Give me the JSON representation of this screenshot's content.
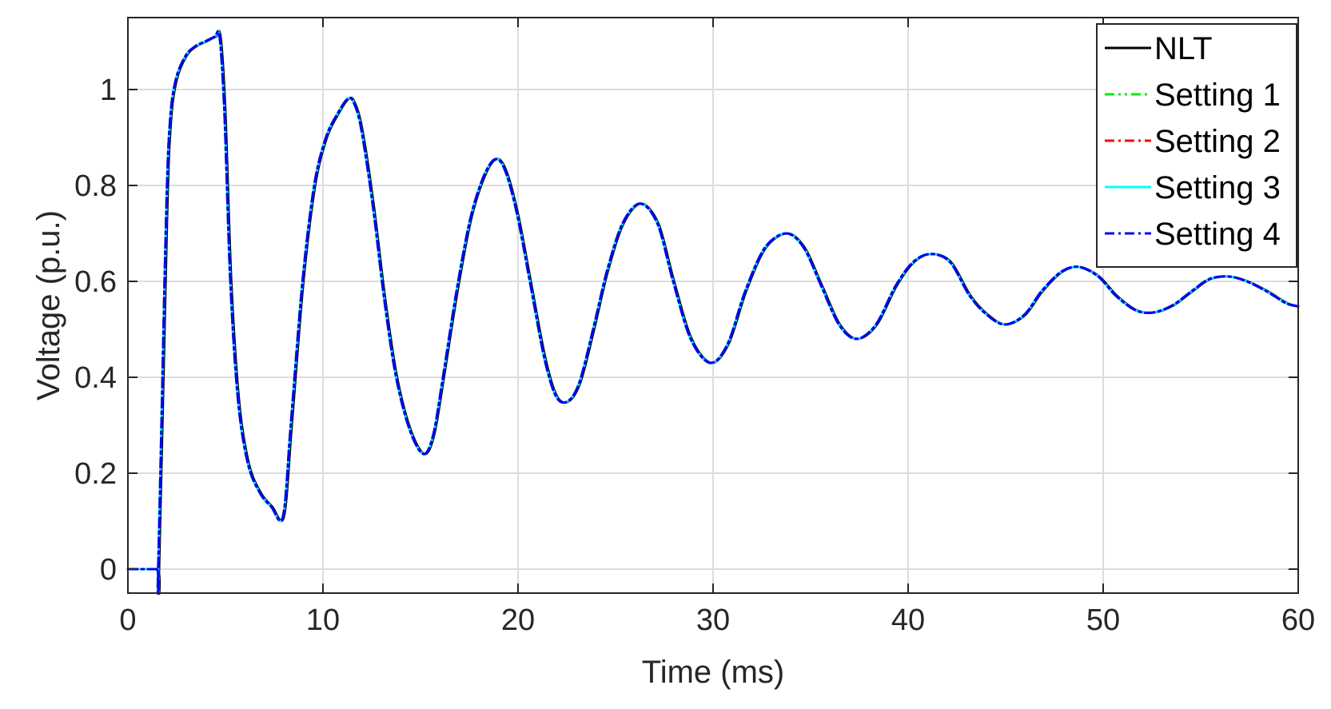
{
  "chart_data": {
    "type": "line",
    "title": "",
    "xlabel": "Time (ms)",
    "ylabel": "Voltage (p.u.)",
    "xlim": [
      0,
      60
    ],
    "ylim": [
      -0.05,
      1.15
    ],
    "xticks": [
      0,
      10,
      20,
      30,
      40,
      50,
      60
    ],
    "yticks": [
      0,
      0.2,
      0.4,
      0.6,
      0.8,
      1
    ],
    "xtick_labels": [
      "0",
      "10",
      "20",
      "30",
      "40",
      "50",
      "60"
    ],
    "ytick_labels": [
      "0",
      "0.2",
      "0.4",
      "0.6",
      "0.8",
      "1"
    ],
    "grid": true,
    "legend_position": "top-right",
    "x": [
      0,
      1.5,
      1.6,
      2.0,
      2.2,
      2.5,
      3.0,
      3.5,
      4.0,
      4.5,
      4.75,
      5.0,
      5.3,
      5.7,
      6.2,
      6.8,
      7.4,
      8.0,
      8.4,
      9.0,
      9.6,
      10.2,
      10.8,
      11.3,
      11.6,
      12.0,
      12.6,
      13.2,
      13.8,
      14.5,
      15.2,
      15.7,
      16.2,
      16.9,
      17.6,
      18.3,
      18.9,
      19.4,
      20.0,
      20.7,
      21.4,
      22.0,
      22.6,
      23.2,
      23.9,
      24.6,
      25.4,
      26.3,
      27.2,
      28.0,
      28.9,
      29.9,
      30.8,
      31.7,
      32.7,
      33.8,
      34.7,
      35.6,
      36.5,
      37.4,
      38.4,
      39.4,
      40.3,
      41.2,
      42.2,
      43.2,
      44.1,
      45.0,
      46.0,
      46.9,
      47.9,
      48.8,
      49.8,
      50.7,
      51.7,
      52.6,
      53.6,
      54.6,
      55.5,
      56.5,
      57.4,
      58.4,
      59.4,
      60.0
    ],
    "series": [
      {
        "name": "NLT",
        "color": "#000000",
        "dash": "solid",
        "width": 3,
        "values": [
          0,
          0,
          0,
          0.72,
          0.93,
          1.02,
          1.07,
          1.09,
          1.1,
          1.11,
          1.11,
          0.95,
          0.6,
          0.35,
          0.22,
          0.16,
          0.13,
          0.11,
          0.3,
          0.6,
          0.8,
          0.9,
          0.95,
          0.98,
          0.975,
          0.92,
          0.76,
          0.56,
          0.4,
          0.29,
          0.24,
          0.28,
          0.4,
          0.58,
          0.73,
          0.82,
          0.855,
          0.83,
          0.74,
          0.59,
          0.44,
          0.36,
          0.35,
          0.39,
          0.5,
          0.62,
          0.72,
          0.762,
          0.72,
          0.6,
          0.48,
          0.43,
          0.47,
          0.58,
          0.67,
          0.7,
          0.67,
          0.59,
          0.51,
          0.48,
          0.51,
          0.59,
          0.64,
          0.657,
          0.64,
          0.57,
          0.53,
          0.51,
          0.53,
          0.58,
          0.62,
          0.63,
          0.61,
          0.57,
          0.54,
          0.535,
          0.55,
          0.58,
          0.605,
          0.61,
          0.6,
          0.58,
          0.555,
          0.548
        ]
      },
      {
        "name": "Setting 1",
        "color": "#00ee00",
        "dash": "12 5 3 5 3 5",
        "width": 3,
        "shift": -0.05,
        "values": [
          0,
          0,
          0,
          0.72,
          0.93,
          1.02,
          1.07,
          1.09,
          1.1,
          1.11,
          1.11,
          0.95,
          0.6,
          0.35,
          0.22,
          0.16,
          0.13,
          0.11,
          0.3,
          0.6,
          0.8,
          0.9,
          0.95,
          0.98,
          0.975,
          0.92,
          0.76,
          0.56,
          0.4,
          0.29,
          0.24,
          0.28,
          0.4,
          0.58,
          0.73,
          0.82,
          0.855,
          0.83,
          0.74,
          0.59,
          0.44,
          0.36,
          0.35,
          0.39,
          0.5,
          0.62,
          0.72,
          0.762,
          0.72,
          0.6,
          0.48,
          0.43,
          0.47,
          0.58,
          0.67,
          0.7,
          0.67,
          0.59,
          0.51,
          0.48,
          0.51,
          0.59,
          0.64,
          0.657,
          0.64,
          0.57,
          0.53,
          0.51,
          0.53,
          0.58,
          0.62,
          0.63,
          0.61,
          0.57,
          0.54,
          0.535,
          0.55,
          0.58,
          0.605,
          0.61,
          0.6,
          0.58,
          0.555,
          0.548
        ]
      },
      {
        "name": "Setting 2",
        "color": "#ff0000",
        "dash": "12 5 3 5",
        "width": 3,
        "shift": -0.05,
        "values": [
          0,
          0,
          0,
          0.72,
          0.93,
          1.02,
          1.07,
          1.09,
          1.1,
          1.11,
          1.11,
          0.95,
          0.6,
          0.35,
          0.22,
          0.16,
          0.13,
          0.11,
          0.3,
          0.6,
          0.8,
          0.9,
          0.95,
          0.98,
          0.975,
          0.92,
          0.76,
          0.56,
          0.4,
          0.29,
          0.24,
          0.28,
          0.4,
          0.58,
          0.73,
          0.82,
          0.855,
          0.83,
          0.74,
          0.59,
          0.44,
          0.36,
          0.35,
          0.39,
          0.5,
          0.62,
          0.72,
          0.762,
          0.72,
          0.6,
          0.48,
          0.43,
          0.47,
          0.58,
          0.67,
          0.7,
          0.67,
          0.59,
          0.51,
          0.48,
          0.51,
          0.59,
          0.64,
          0.657,
          0.64,
          0.57,
          0.53,
          0.51,
          0.53,
          0.58,
          0.62,
          0.63,
          0.61,
          0.57,
          0.54,
          0.535,
          0.55,
          0.58,
          0.605,
          0.61,
          0.6,
          0.58,
          0.555,
          0.548
        ]
      },
      {
        "name": "Setting 3",
        "color": "#00ffff",
        "dash": "solid",
        "width": 3,
        "shift": -0.05,
        "values": [
          0,
          0,
          0,
          0.72,
          0.93,
          1.02,
          1.07,
          1.09,
          1.1,
          1.11,
          1.11,
          0.95,
          0.6,
          0.35,
          0.22,
          0.16,
          0.13,
          0.11,
          0.3,
          0.6,
          0.8,
          0.9,
          0.95,
          0.98,
          0.975,
          0.92,
          0.76,
          0.56,
          0.4,
          0.29,
          0.24,
          0.28,
          0.4,
          0.58,
          0.73,
          0.82,
          0.855,
          0.83,
          0.74,
          0.59,
          0.44,
          0.36,
          0.35,
          0.39,
          0.5,
          0.62,
          0.72,
          0.762,
          0.72,
          0.6,
          0.48,
          0.43,
          0.47,
          0.58,
          0.67,
          0.7,
          0.67,
          0.59,
          0.51,
          0.48,
          0.51,
          0.59,
          0.64,
          0.657,
          0.64,
          0.57,
          0.53,
          0.51,
          0.53,
          0.58,
          0.62,
          0.63,
          0.61,
          0.57,
          0.54,
          0.535,
          0.55,
          0.58,
          0.605,
          0.61,
          0.6,
          0.58,
          0.555,
          0.548
        ]
      },
      {
        "name": "Setting 4",
        "color": "#0000ff",
        "dash": "12 5 3 5",
        "width": 3,
        "shift": -0.05,
        "values": [
          0,
          0,
          0,
          0.72,
          0.93,
          1.02,
          1.07,
          1.09,
          1.1,
          1.11,
          1.11,
          0.95,
          0.6,
          0.35,
          0.22,
          0.16,
          0.13,
          0.11,
          0.3,
          0.6,
          0.8,
          0.9,
          0.95,
          0.98,
          0.975,
          0.92,
          0.76,
          0.56,
          0.4,
          0.29,
          0.24,
          0.28,
          0.4,
          0.58,
          0.73,
          0.82,
          0.855,
          0.83,
          0.74,
          0.59,
          0.44,
          0.36,
          0.35,
          0.39,
          0.5,
          0.62,
          0.72,
          0.762,
          0.72,
          0.6,
          0.48,
          0.43,
          0.47,
          0.58,
          0.67,
          0.7,
          0.67,
          0.59,
          0.51,
          0.48,
          0.51,
          0.59,
          0.64,
          0.657,
          0.64,
          0.57,
          0.53,
          0.51,
          0.53,
          0.58,
          0.62,
          0.63,
          0.61,
          0.57,
          0.54,
          0.535,
          0.55,
          0.58,
          0.605,
          0.61,
          0.6,
          0.58,
          0.555,
          0.548
        ]
      }
    ]
  }
}
